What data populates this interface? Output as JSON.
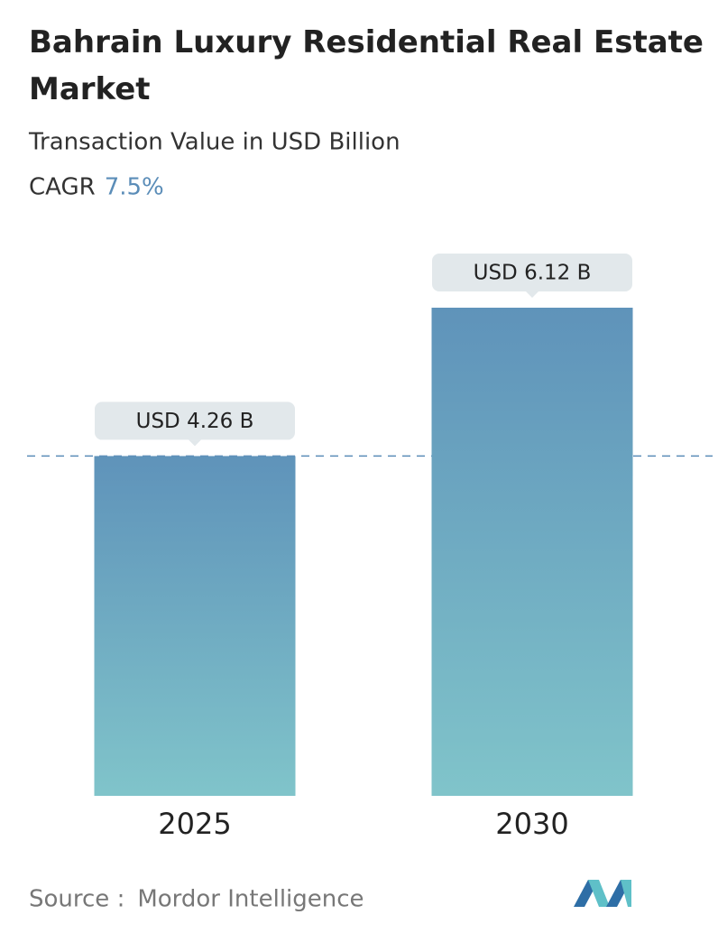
{
  "chart_data": {
    "type": "bar",
    "title": "Bahrain Luxury Residential Real Estate Market",
    "subtitle": "Transaction Value in USD Billion",
    "cagr_label": "CAGR",
    "cagr": "7.5%",
    "categories": [
      "2025",
      "2030"
    ],
    "values": [
      4.26,
      6.12
    ],
    "value_labels": [
      "USD 4.26 B",
      "USD 6.12 B"
    ],
    "source_label": "Source :",
    "source": "Mordor Intelligence"
  }
}
